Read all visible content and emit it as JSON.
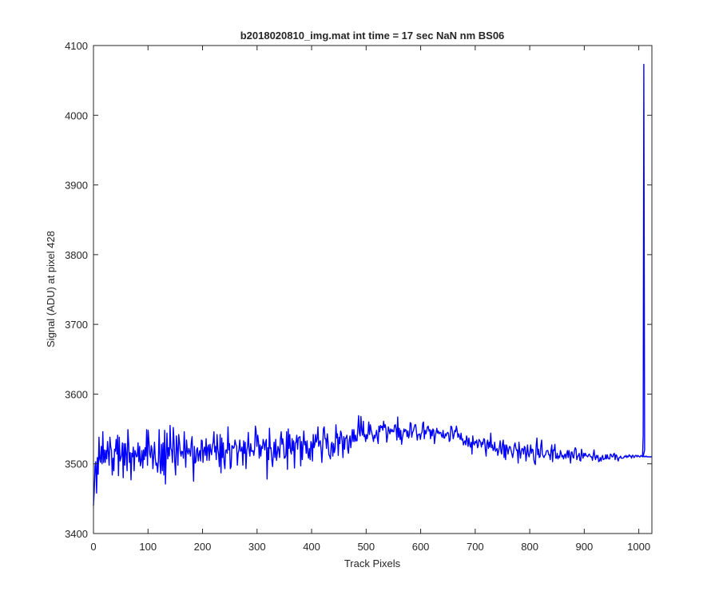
{
  "chart_data": {
    "type": "line",
    "title": "b2018020810_img.mat int time = 17 sec  NaN nm BS06",
    "xlabel": "Track Pixels",
    "ylabel": "Signal (ADU) at pixel 428",
    "xlim": [
      0,
      1024
    ],
    "ylim": [
      3400,
      4100
    ],
    "xticks": [
      0,
      100,
      200,
      300,
      400,
      500,
      600,
      700,
      800,
      900,
      1000
    ],
    "yticks": [
      3400,
      3500,
      3600,
      3700,
      3800,
      3900,
      4000,
      4100
    ],
    "grid": false,
    "legend": "none",
    "line_color": "#0000ff",
    "series": [
      {
        "values": [
          3440,
          3462,
          3497,
          3503,
          3458,
          3509,
          3485,
          3538,
          3507,
          3502,
          3525,
          3500,
          3546,
          3502,
          3520,
          3502,
          3519,
          3507,
          3532,
          3517,
          3498,
          3538,
          3525,
          3519,
          3484,
          3508,
          3490,
          3521,
          3518,
          3535,
          3514,
          3541,
          3483,
          3538,
          3504,
          3508,
          3513,
          3530,
          3480,
          3529,
          3498,
          3529,
          3514,
          3490,
          3549,
          3529,
          3502,
          3516,
          3477,
          3515,
          3510,
          3524,
          3490,
          3519,
          3515,
          3510,
          3511,
          3530,
          3503,
          3525,
          3497,
          3504,
          3519,
          3494,
          3520,
          3506,
          3523,
          3511,
          3549,
          3498,
          3548,
          3531,
          3514,
          3509,
          3526,
          3520,
          3493,
          3512,
          3531,
          3509,
          3498,
          3501,
          3488,
          3505,
          3549,
          3503,
          3486,
          3528,
          3490,
          3530,
          3484,
          3548,
          3471,
          3512,
          3544,
          3507,
          3523,
          3511,
          3555,
          3522,
          3519,
          3502,
          3552,
          3534,
          3502,
          3484,
          3540,
          3522,
          3498,
          3542,
          3531,
          3517,
          3511,
          3518,
          3517,
          3508,
          3546,
          3521,
          3495,
          3534,
          3518,
          3514,
          3522,
          3518,
          3511,
          3530,
          3539,
          3507,
          3475,
          3525,
          3501,
          3503,
          3520,
          3523,
          3504,
          3514,
          3519,
          3504,
          3534,
          3533,
          3502,
          3519,
          3524,
          3512,
          3536,
          3505,
          3523,
          3527,
          3505,
          3528,
          3519,
          3513,
          3526,
          3531,
          3546,
          3517,
          3525,
          3506,
          3542,
          3521,
          3514,
          3496,
          3542,
          3487,
          3537,
          3509,
          3530,
          3502,
          3493,
          3519,
          3520,
          3515,
          3553,
          3520,
          3529,
          3493,
          3496,
          3526,
          3525,
          3522,
          3524,
          3534,
          3528,
          3525,
          3498,
          3515,
          3520,
          3534,
          3518,
          3519,
          3524,
          3498,
          3533,
          3515,
          3531,
          3493,
          3519,
          3525,
          3545,
          3520,
          3511,
          3529,
          3518,
          3518,
          3519,
          3512,
          3521,
          3554,
          3547,
          3525,
          3541,
          3532,
          3508,
          3527,
          3511,
          3525,
          3522,
          3535,
          3530,
          3520,
          3531,
          3535,
          3478,
          3523,
          3506,
          3551,
          3522,
          3523,
          3506,
          3496,
          3514,
          3531,
          3509,
          3535,
          3505,
          3515,
          3525,
          3520,
          3509,
          3536,
          3546,
          3528,
          3536,
          3526,
          3508,
          3509,
          3512,
          3546,
          3492,
          3550,
          3522,
          3542,
          3518,
          3514,
          3536,
          3519,
          3533,
          3494,
          3530,
          3531,
          3541,
          3521,
          3537,
          3538,
          3539,
          3497,
          3532,
          3506,
          3530,
          3547,
          3527,
          3532,
          3515,
          3533,
          3517,
          3508,
          3522,
          3506,
          3532,
          3529,
          3504,
          3542,
          3523,
          3528,
          3542,
          3531,
          3536,
          3553,
          3525,
          3531,
          3533,
          3521,
          3502,
          3522,
          3550,
          3553,
          3536,
          3536,
          3522,
          3543,
          3531,
          3513,
          3511,
          3507,
          3528,
          3531,
          3511,
          3529,
          3516,
          3522,
          3556,
          3537,
          3543,
          3512,
          3538,
          3529,
          3547,
          3544,
          3532,
          3509,
          3539,
          3521,
          3537,
          3537,
          3541,
          3521,
          3515,
          3533,
          3540,
          3523,
          3536,
          3549,
          3532,
          3549,
          3532,
          3541,
          3533,
          3533,
          3550,
          3569,
          3544,
          3540,
          3568,
          3548,
          3541,
          3561,
          3539,
          3542,
          3532,
          3542,
          3536,
          3543,
          3560,
          3542,
          3556,
          3549,
          3544,
          3539,
          3532,
          3541,
          3537,
          3542,
          3548,
          3536,
          3529,
          3554,
          3546,
          3555,
          3552,
          3554,
          3548,
          3561,
          3552,
          3556,
          3550,
          3531,
          3539,
          3553,
          3548,
          3543,
          3550,
          3546,
          3549,
          3546,
          3546,
          3555,
          3556,
          3549,
          3534,
          3567,
          3538,
          3551,
          3535,
          3548,
          3528,
          3537,
          3544,
          3550,
          3546,
          3549,
          3548,
          3539,
          3547,
          3537,
          3542,
          3559,
          3558,
          3538,
          3545,
          3547,
          3552,
          3556,
          3556,
          3546,
          3534,
          3542,
          3542,
          3543,
          3535,
          3543,
          3545,
          3558,
          3560,
          3536,
          3548,
          3543,
          3547,
          3553,
          3554,
          3547,
          3549,
          3536,
          3548,
          3540,
          3550,
          3548,
          3529,
          3539,
          3545,
          3551,
          3544,
          3547,
          3543,
          3545,
          3545,
          3540,
          3538,
          3548,
          3537,
          3537,
          3543,
          3540,
          3544,
          3545,
          3543,
          3532,
          3534,
          3554,
          3553,
          3546,
          3536,
          3541,
          3548,
          3546,
          3554,
          3548,
          3538,
          3543,
          3539,
          3535,
          3544,
          3534,
          3536,
          3527,
          3531,
          3533,
          3527,
          3540,
          3534,
          3525,
          3537,
          3528,
          3524,
          3531,
          3514,
          3540,
          3529,
          3527,
          3532,
          3530,
          3534,
          3523,
          3526,
          3535,
          3533,
          3531,
          3524,
          3531,
          3528,
          3536,
          3535,
          3521,
          3511,
          3529,
          3534,
          3522,
          3531,
          3524,
          3544,
          3523,
          3527,
          3519,
          3521,
          3531,
          3518,
          3520,
          3522,
          3512,
          3518,
          3524,
          3533,
          3517,
          3514,
          3529,
          3534,
          3509,
          3527,
          3506,
          3527,
          3523,
          3514,
          3520,
          3525,
          3524,
          3519,
          3514,
          3509,
          3516,
          3526,
          3530,
          3523,
          3519,
          3520,
          3501,
          3531,
          3518,
          3508,
          3518,
          3522,
          3521,
          3514,
          3525,
          3523,
          3504,
          3515,
          3527,
          3514,
          3510,
          3517,
          3527,
          3515,
          3521,
          3520,
          3506,
          3501,
          3499,
          3525,
          3537,
          3513,
          3521,
          3509,
          3510,
          3526,
          3534,
          3514,
          3511,
          3509,
          3512,
          3513,
          3518,
          3519,
          3519,
          3513,
          3513,
          3506,
          3519,
          3527,
          3503,
          3520,
          3519,
          3528,
          3508,
          3508,
          3515,
          3507,
          3511,
          3509,
          3519,
          3515,
          3510,
          3512,
          3507,
          3512,
          3514,
          3508,
          3514,
          3519,
          3509,
          3519,
          3512,
          3501,
          3517,
          3517,
          3510,
          3508,
          3519,
          3523,
          3521,
          3506,
          3510,
          3512,
          3515,
          3505,
          3504,
          3521,
          3513,
          3508,
          3515,
          3511,
          3515,
          3512,
          3511,
          3510,
          3513,
          3514,
          3511,
          3510,
          3510,
          3505,
          3513,
          3520,
          3510,
          3506,
          3512,
          3509,
          3512,
          3503,
          3504,
          3509,
          3504,
          3509,
          3512,
          3506,
          3507,
          3507,
          3513,
          3507,
          3513,
          3508,
          3507,
          3507,
          3514,
          3513,
          3510,
          3510,
          3514,
          3515,
          3506,
          3513,
          3512,
          3507,
          3504,
          3509,
          3509,
          3511,
          3508,
          3508,
          3508,
          3509,
          3511,
          3510,
          3512,
          3509,
          3511,
          3510,
          3513,
          3511,
          3511,
          3508,
          3512,
          3512,
          3509,
          3510,
          3512,
          3512,
          3510,
          3512,
          3511,
          3510,
          3510,
          3512,
          3511,
          3510,
          3511,
          3510,
          3511,
          3510,
          3511,
          3510,
          3510,
          3510,
          3510,
          3510,
          3510,
          3510
        ],
        "note_x_sampling": "one value per pixel from 0 to 1024 in steps of ~1.5"
      }
    ]
  }
}
